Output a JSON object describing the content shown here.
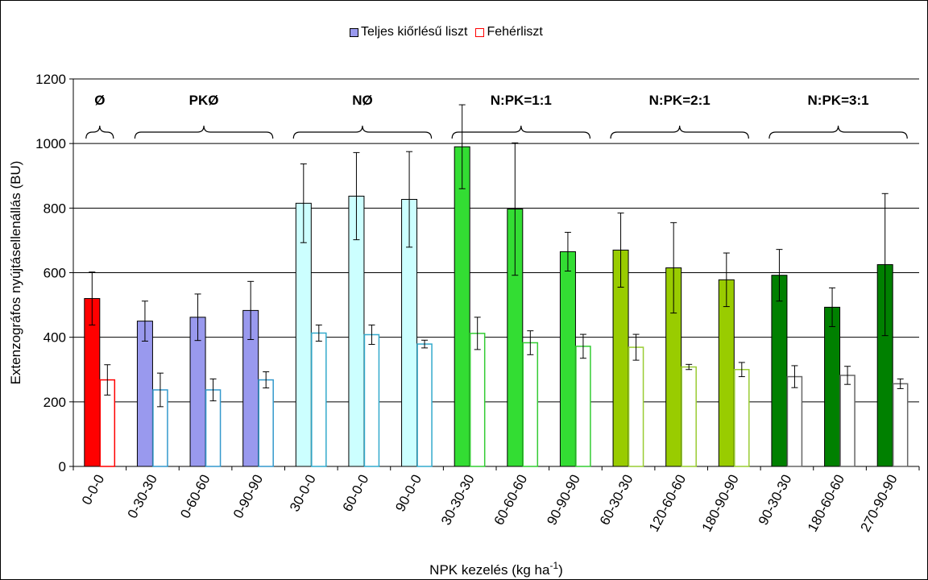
{
  "chart_data": {
    "type": "bar",
    "xlabel": "NPK kezelés (kg ha",
    "xlabel_sup": "-1",
    "xlabel_close": ")",
    "ylabel": "Extenzográfos nyújtásellenállás (BU)",
    "ylim": [
      0,
      1200
    ],
    "yticks": [
      0,
      200,
      400,
      600,
      800,
      1000,
      1200
    ],
    "grid": true,
    "legend_position": "top-center",
    "categories": [
      "0-0-0",
      "0-30-30",
      "0-60-60",
      "0-90-90",
      "30-0-0",
      "60-0-0",
      "90-0-0",
      "30-30-30",
      "60-60-60",
      "90-90-90",
      "60-30-30",
      "120-60-60",
      "180-90-90",
      "90-30-30",
      "180-60-60",
      "270-90-90"
    ],
    "series": [
      {
        "name": "Teljes kiőrlésű liszt",
        "values": [
          520,
          450,
          462,
          483,
          815,
          837,
          827,
          990,
          797,
          665,
          670,
          615,
          578,
          592,
          493,
          625
        ],
        "errors": [
          82,
          62,
          72,
          90,
          122,
          135,
          148,
          130,
          205,
          60,
          115,
          140,
          83,
          80,
          60,
          220
        ]
      },
      {
        "name": "Fehérliszt",
        "values": [
          268,
          237,
          237,
          268,
          413,
          408,
          379,
          412,
          383,
          372,
          369,
          308,
          300,
          278,
          282,
          256
        ],
        "errors": [
          47,
          52,
          34,
          25,
          25,
          30,
          12,
          50,
          37,
          37,
          40,
          8,
          22,
          34,
          28,
          15
        ]
      }
    ],
    "bar_colors": [
      "#ff0000",
      "#9999ee",
      "#9999ee",
      "#9999ee",
      "#ccffff",
      "#ccffff",
      "#ccffff",
      "#33dd33",
      "#33dd33",
      "#33dd33",
      "#99cc00",
      "#99cc00",
      "#99cc00",
      "#008000",
      "#008000",
      "#008000"
    ],
    "outline_colors": [
      "#ff0000",
      "#3399cc",
      "#3399cc",
      "#3399cc",
      "#33aacc",
      "#33aacc",
      "#33aacc",
      "#33cc33",
      "#33cc33",
      "#33cc33",
      "#99cc33",
      "#99cc33",
      "#99cc33",
      "#666666",
      "#666666",
      "#666666"
    ],
    "legend_colors": [
      "#9999ee",
      "#ff0000"
    ],
    "groups": [
      {
        "label": "Ø",
        "first": 0,
        "last": 0
      },
      {
        "label": "PKØ",
        "first": 1,
        "last": 3
      },
      {
        "label": "NØ",
        "first": 4,
        "last": 6
      },
      {
        "label": "N:PK=1:1",
        "first": 7,
        "last": 9
      },
      {
        "label": "N:PK=2:1",
        "first": 10,
        "last": 12
      },
      {
        "label": "N:PK=3:1",
        "first": 13,
        "last": 15
      }
    ]
  }
}
